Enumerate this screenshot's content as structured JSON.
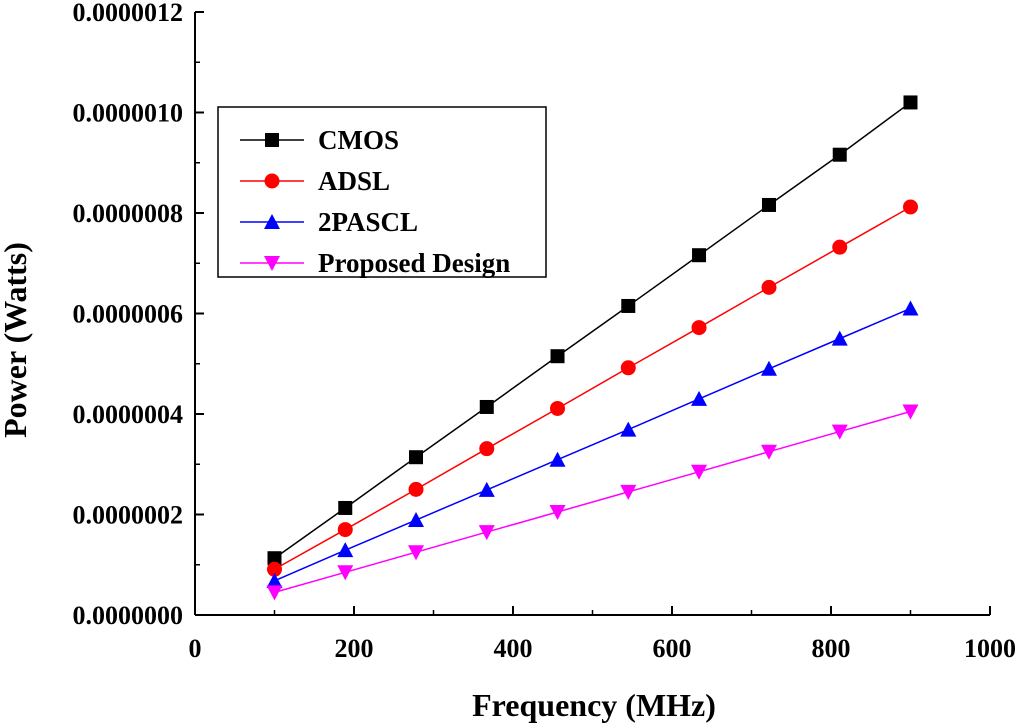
{
  "chart_data": {
    "type": "line",
    "title": "",
    "xlabel": "Frequency (MHz)",
    "ylabel": "Power (Watts)",
    "xlim": [
      0,
      1000
    ],
    "ylim": [
      0,
      1.2e-06
    ],
    "x_ticks": [
      0,
      200,
      400,
      600,
      800,
      1000
    ],
    "x_tick_labels": [
      "0",
      "200",
      "400",
      "600",
      "800",
      "1000"
    ],
    "y_ticks": [
      0,
      2e-07,
      4e-07,
      6e-07,
      8e-07,
      1e-06,
      1.2e-06
    ],
    "y_tick_labels": [
      "0.0000000",
      "0.0000002",
      "0.0000004",
      "0.0000006",
      "0.0000008",
      "0.0000010",
      "0.0000012"
    ],
    "grid": false,
    "legend_position": "top-left",
    "x": [
      100,
      189,
      278,
      367,
      456,
      545,
      634,
      722,
      811,
      900
    ],
    "series": [
      {
        "name": "CMOS",
        "color": "#000000",
        "marker": "square",
        "values": [
          1.13e-07,
          2.13e-07,
          3.14e-07,
          4.14e-07,
          5.15e-07,
          6.15e-07,
          7.16e-07,
          8.16e-07,
          9.16e-07,
          1.02e-06
        ]
      },
      {
        "name": "ADSL",
        "color": "#ff0000",
        "marker": "circle",
        "values": [
          9.1e-08,
          1.7e-07,
          2.5e-07,
          3.31e-07,
          4.11e-07,
          4.92e-07,
          5.72e-07,
          6.52e-07,
          7.32e-07,
          8.12e-07
        ]
      },
      {
        "name": "2PASCL",
        "color": "#0000ff",
        "marker": "triangle-up",
        "values": [
          6.8e-08,
          1.29e-07,
          1.89e-07,
          2.49e-07,
          3.09e-07,
          3.69e-07,
          4.3e-07,
          4.9e-07,
          5.5e-07,
          6.1e-07
        ]
      },
      {
        "name": "Proposed Design",
        "color": "#ff00ff",
        "marker": "triangle-down",
        "values": [
          4.5e-08,
          8.5e-08,
          1.25e-07,
          1.65e-07,
          2.05e-07,
          2.45e-07,
          2.85e-07,
          3.25e-07,
          3.65e-07,
          4.05e-07
        ]
      }
    ]
  }
}
